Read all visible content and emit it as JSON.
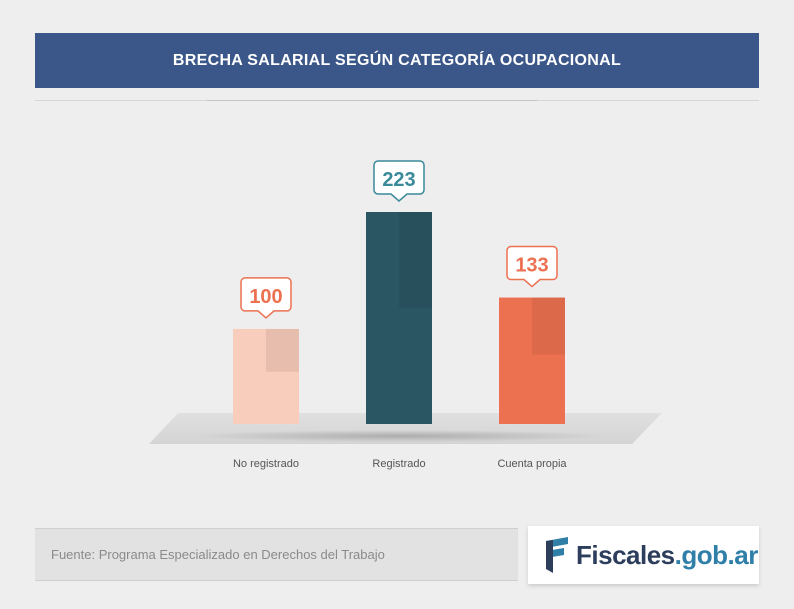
{
  "header": {
    "title": "BRECHA SALARIAL SEGÚN CATEGORÍA OCUPACIONAL"
  },
  "chart_data": {
    "type": "bar",
    "title": "BRECHA SALARIAL SEGÚN CATEGORÍA OCUPACIONAL",
    "categories": [
      "No registrado",
      "Registrado",
      "Cuenta propia"
    ],
    "values": [
      100,
      223,
      133
    ],
    "value_labels": [
      "100",
      "223",
      "133"
    ],
    "ylim": [
      0,
      250
    ],
    "grid": false,
    "colors": [
      "#f9cdbb",
      "#2a5563",
      "#ec7150"
    ],
    "label_colors": [
      "#ec7150",
      "#3a8a9a",
      "#ec7150"
    ]
  },
  "footer": {
    "source": "Fuente: Programa Especializado en Derechos del Trabajo"
  },
  "logo": {
    "part1": "Fiscales",
    "part2": ".gob.ar",
    "icon": "fiscales-flag-icon"
  }
}
